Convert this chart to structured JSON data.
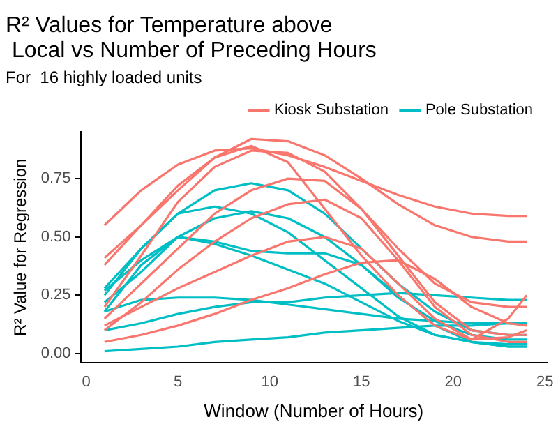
{
  "chart_data": {
    "type": "line",
    "title": "R² Values for Temperature above\n Local vs Number of Preceding Hours",
    "subtitle": "For  16 highly loaded units",
    "xlabel": "Window (Number of Hours)",
    "ylabel": "R² Value for Regression",
    "x": [
      1,
      3,
      5,
      7,
      9,
      11,
      13,
      15,
      17,
      19,
      21,
      23,
      24
    ],
    "xlim": [
      -0.3,
      25.1
    ],
    "xticks": [
      0,
      5,
      10,
      15,
      20,
      25
    ],
    "ylim": [
      -0.04,
      0.95
    ],
    "yticks": [
      {
        "value": 0,
        "label": "0.00"
      },
      {
        "value": 0.25,
        "label": "0.25"
      },
      {
        "value": 0.5,
        "label": "0.50"
      },
      {
        "value": 0.75,
        "label": "0.75"
      }
    ],
    "grid": false,
    "legend": "top right",
    "marker": "none",
    "line_style": "solid",
    "series": [
      {
        "name": "Kiosk Substation",
        "color": "#f8766d",
        "values": [
          0.55,
          0.7,
          0.81,
          0.87,
          0.88,
          0.85,
          0.8,
          0.74,
          0.68,
          0.63,
          0.6,
          0.59,
          0.59
        ]
      },
      {
        "color": "#f8766d",
        "values": [
          0.41,
          0.55,
          0.7,
          0.84,
          0.92,
          0.91,
          0.85,
          0.75,
          0.64,
          0.55,
          0.5,
          0.48,
          0.48
        ]
      },
      {
        "color": "#f8766d",
        "values": [
          0.38,
          0.55,
          0.72,
          0.84,
          0.89,
          0.82,
          0.62,
          0.42,
          0.25,
          0.12,
          0.06,
          0.15,
          0.25
        ]
      },
      {
        "color": "#f8766d",
        "values": [
          0.2,
          0.42,
          0.65,
          0.8,
          0.87,
          0.86,
          0.78,
          0.62,
          0.45,
          0.3,
          0.22,
          0.2,
          0.2
        ]
      },
      {
        "color": "#f8766d",
        "values": [
          0.15,
          0.3,
          0.45,
          0.6,
          0.7,
          0.75,
          0.74,
          0.62,
          0.42,
          0.22,
          0.1,
          0.08,
          0.08
        ]
      },
      {
        "color": "#f8766d",
        "values": [
          0.1,
          0.22,
          0.36,
          0.48,
          0.58,
          0.64,
          0.66,
          0.58,
          0.4,
          0.2,
          0.08,
          0.05,
          0.05
        ]
      },
      {
        "color": "#f8766d",
        "values": [
          0.05,
          0.08,
          0.12,
          0.17,
          0.23,
          0.28,
          0.34,
          0.39,
          0.4,
          0.32,
          0.2,
          0.13,
          0.12
        ]
      },
      {
        "color": "#f8766d",
        "values": [
          0.12,
          0.2,
          0.28,
          0.35,
          0.42,
          0.48,
          0.5,
          0.45,
          0.3,
          0.15,
          0.06,
          0.07,
          0.1
        ]
      },
      {
        "name": "Pole Substation",
        "color": "#00bfc4",
        "values": [
          0.28,
          0.45,
          0.6,
          0.7,
          0.73,
          0.7,
          0.6,
          0.45,
          0.3,
          0.18,
          0.1,
          0.08,
          0.08
        ]
      },
      {
        "color": "#00bfc4",
        "values": [
          0.25,
          0.45,
          0.6,
          0.63,
          0.6,
          0.52,
          0.4,
          0.28,
          0.16,
          0.08,
          0.05,
          0.04,
          0.04
        ]
      },
      {
        "color": "#00bfc4",
        "values": [
          0.22,
          0.35,
          0.5,
          0.58,
          0.61,
          0.58,
          0.5,
          0.38,
          0.24,
          0.14,
          0.08,
          0.06,
          0.06
        ]
      },
      {
        "color": "#00bfc4",
        "values": [
          0.27,
          0.4,
          0.5,
          0.48,
          0.44,
          0.43,
          0.43,
          0.38,
          0.25,
          0.12,
          0.05,
          0.03,
          0.03
        ]
      },
      {
        "color": "#00bfc4",
        "values": [
          0.18,
          0.38,
          0.5,
          0.47,
          0.42,
          0.36,
          0.3,
          0.22,
          0.14,
          0.08,
          0.05,
          0.03,
          0.03
        ]
      },
      {
        "color": "#00bfc4",
        "values": [
          0.18,
          0.23,
          0.24,
          0.24,
          0.23,
          0.21,
          0.19,
          0.17,
          0.15,
          0.14,
          0.13,
          0.13,
          0.13
        ]
      },
      {
        "color": "#00bfc4",
        "values": [
          0.1,
          0.13,
          0.17,
          0.2,
          0.22,
          0.22,
          0.24,
          0.25,
          0.26,
          0.25,
          0.24,
          0.23,
          0.23
        ]
      },
      {
        "color": "#00bfc4",
        "values": [
          0.01,
          0.02,
          0.03,
          0.05,
          0.06,
          0.07,
          0.09,
          0.1,
          0.11,
          0.12,
          0.12,
          0.13,
          0.13
        ]
      }
    ]
  }
}
